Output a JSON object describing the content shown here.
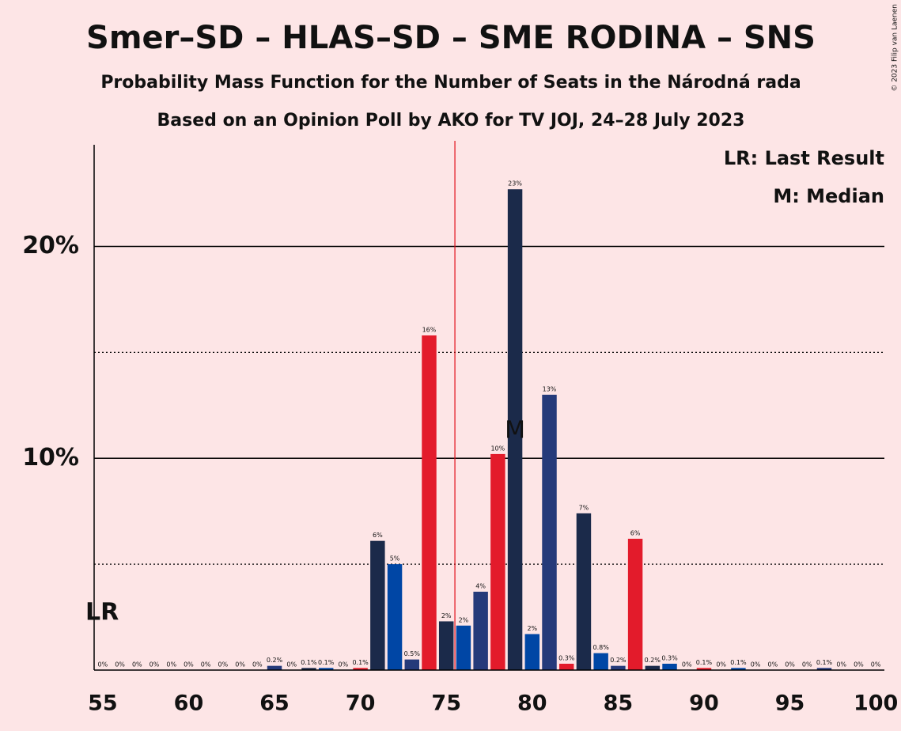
{
  "chart_data": {
    "type": "bar",
    "title": "Smer–SD – HLAS–SD – SME RODINA – SNS",
    "subtitle": "Probability Mass Function for the Number of Seats in the Národná rada",
    "subtitle2": "Based on an Opinion Poll by AKO for TV JOJ, 24–28 July 2023",
    "copyright": "© 2023 Filip van Laenen",
    "legend_lr": "LR: Last Result",
    "legend_median": "M: Median",
    "lr_label": "LR",
    "median_marker": "M",
    "median": 79,
    "majority_line_x": 75.5,
    "majority_color": "#e0101a",
    "palette": [
      "#0046a5",
      "#253a7a",
      "#e31b2b",
      "#1b2a4a"
    ],
    "x": [
      55,
      56,
      57,
      58,
      59,
      60,
      61,
      62,
      63,
      64,
      65,
      66,
      67,
      68,
      69,
      70,
      71,
      72,
      73,
      74,
      75,
      76,
      77,
      78,
      79,
      80,
      81,
      82,
      83,
      84,
      85,
      86,
      87,
      88,
      89,
      90,
      91,
      92,
      93,
      94,
      95,
      96,
      97,
      98,
      99,
      100
    ],
    "values": [
      0,
      0,
      0,
      0,
      0,
      0,
      0,
      0,
      0,
      0,
      0.2,
      0,
      0.1,
      0.1,
      0,
      0.1,
      6.1,
      5.0,
      0.5,
      15.8,
      2.3,
      2.1,
      3.7,
      10.2,
      22.7,
      1.7,
      13.0,
      0.3,
      7.4,
      0.8,
      0.2,
      6.2,
      0.2,
      0.3,
      0,
      0.1,
      0,
      0.1,
      0,
      0,
      0,
      0,
      0.1,
      0,
      0,
      0
    ],
    "value_labels": [
      "0%",
      "0%",
      "0%",
      "0%",
      "0%",
      "0%",
      "0%",
      "0%",
      "0%",
      "0%",
      "0.2%",
      "0%",
      "0.1%",
      "0.1%",
      "0%",
      "0.1%",
      "6%",
      "5%",
      "0.5%",
      "16%",
      "2%",
      "2%",
      "4%",
      "10%",
      "23%",
      "2%",
      "13%",
      "0.3%",
      "7%",
      "0.8%",
      "0.2%",
      "6%",
      "0.2%",
      "0.3%",
      "0%",
      "0.1%",
      "0%",
      "0.1%",
      "0%",
      "0%",
      "0%",
      "0%",
      "0.1%",
      "0%",
      "0%",
      "0%"
    ],
    "xlim": [
      54.5,
      100.5
    ],
    "xticks": [
      55,
      60,
      65,
      70,
      75,
      80,
      85,
      90,
      95,
      100
    ],
    "ylim": [
      0,
      24.8
    ],
    "yticks": [
      {
        "value": 10,
        "label": "10%"
      },
      {
        "value": 20,
        "label": "20%"
      }
    ],
    "minor_yticks": [
      5,
      15
    ],
    "grid": true
  }
}
